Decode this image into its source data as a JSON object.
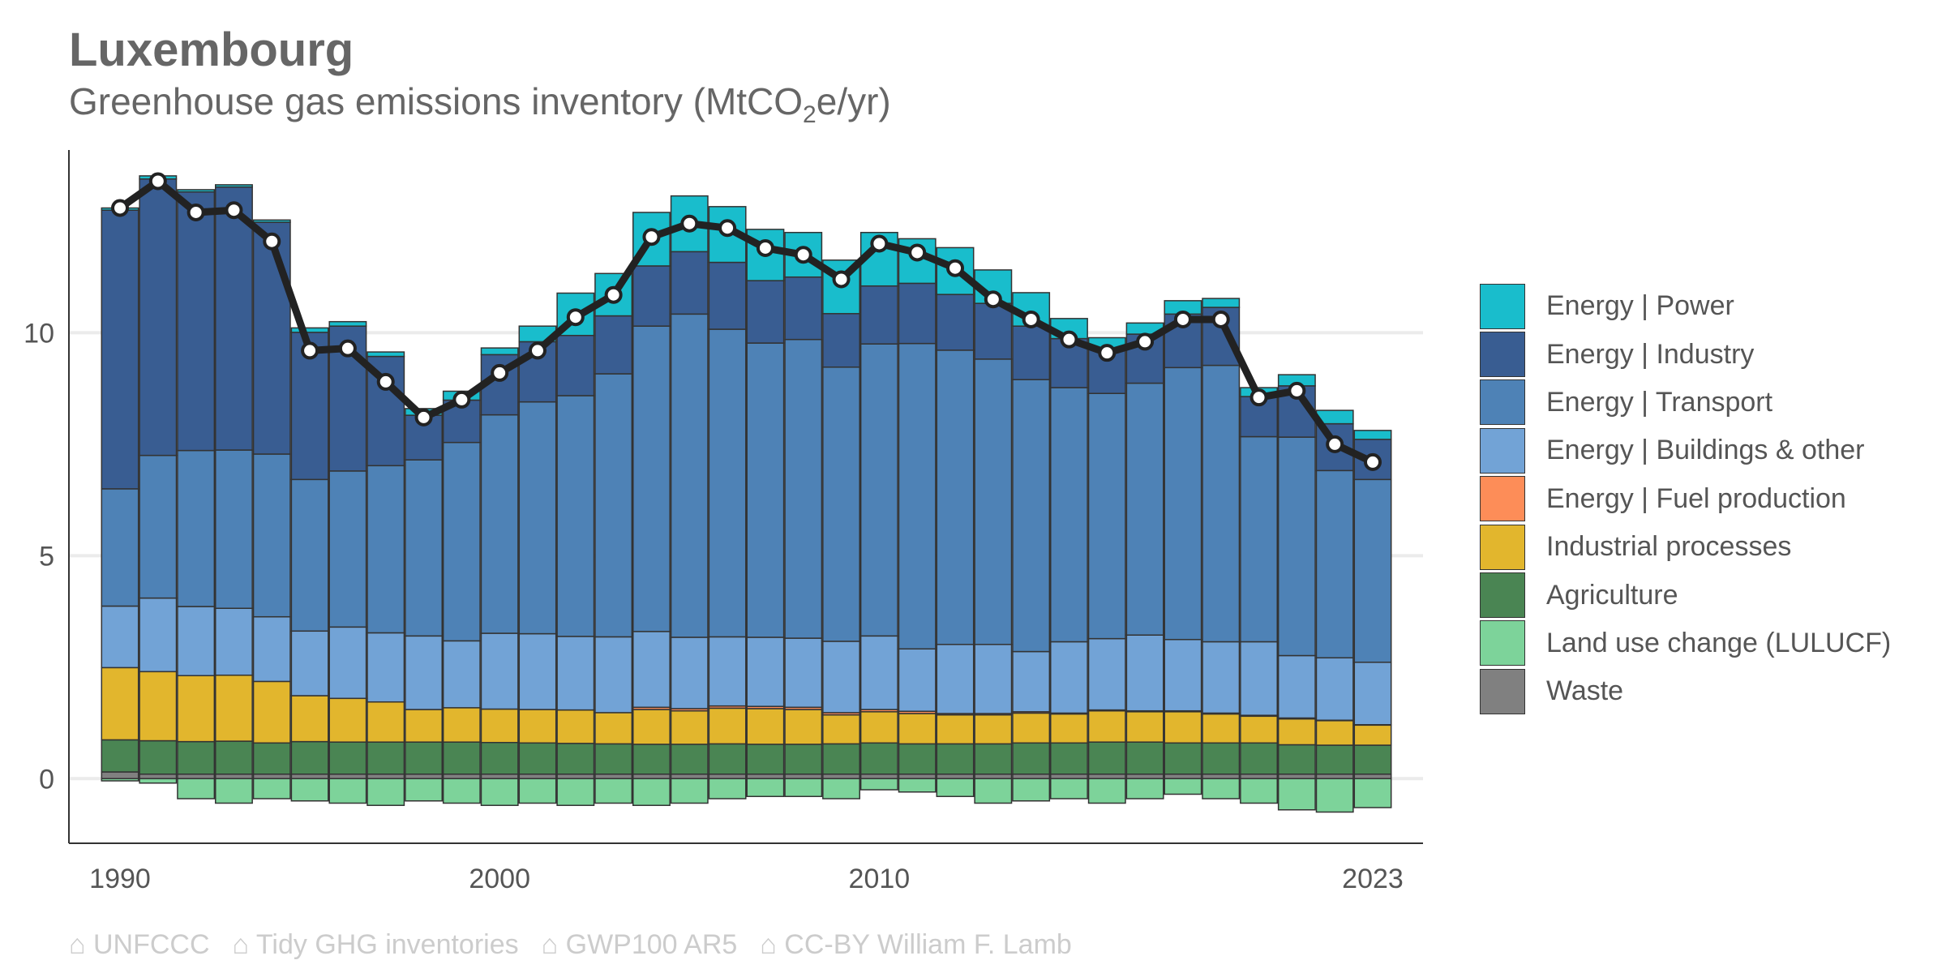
{
  "header": {
    "title": "Luxembourg",
    "subtitle_main": "Greenhouse gas emissions inventory (MtCO",
    "subtitle_sub": "2",
    "subtitle_end": "e/yr)"
  },
  "footer": {
    "sources": [
      "⌂ UNFCCC",
      "⌂ Tidy GHG inventories",
      "⌂ GWP100 AR5",
      "⌂ CC-BY William F. Lamb"
    ]
  },
  "chart_data": {
    "type": "bar",
    "stacked": true,
    "x_tick_labels": [
      "1990",
      "2000",
      "2010",
      "2023"
    ],
    "y_tick_labels": [
      "0",
      "5",
      "10"
    ],
    "ylim": [
      -1.45,
      14.1
    ],
    "grid": "horizontal",
    "legend_position": "right",
    "years": [
      1990,
      1991,
      1992,
      1993,
      1994,
      1995,
      1996,
      1997,
      1998,
      1999,
      2000,
      2001,
      2002,
      2003,
      2004,
      2005,
      2006,
      2007,
      2008,
      2009,
      2010,
      2011,
      2012,
      2013,
      2014,
      2015,
      2016,
      2017,
      2018,
      2019,
      2020,
      2021,
      2022,
      2023
    ],
    "series": [
      {
        "name": "Waste",
        "color": "#808080",
        "values": [
          0.15,
          0.1,
          0.1,
          0.1,
          0.1,
          0.1,
          0.1,
          0.1,
          0.1,
          0.1,
          0.1,
          0.1,
          0.1,
          0.1,
          0.1,
          0.1,
          0.1,
          0.1,
          0.1,
          0.1,
          0.1,
          0.1,
          0.1,
          0.1,
          0.1,
          0.1,
          0.1,
          0.1,
          0.1,
          0.1,
          0.1,
          0.1,
          0.1,
          0.1
        ]
      },
      {
        "name": "Land use change (LULUCF)",
        "color": "#7dd39a",
        "values": [
          -0.05,
          -0.1,
          -0.45,
          -0.55,
          -0.45,
          -0.5,
          -0.55,
          -0.6,
          -0.5,
          -0.55,
          -0.6,
          -0.55,
          -0.6,
          -0.55,
          -0.6,
          -0.55,
          -0.45,
          -0.4,
          -0.4,
          -0.45,
          -0.25,
          -0.3,
          -0.4,
          -0.55,
          -0.5,
          -0.45,
          -0.55,
          -0.45,
          -0.35,
          -0.45,
          -0.55,
          -0.7,
          -0.75,
          -0.65
        ]
      },
      {
        "name": "Agriculture",
        "color": "#4a8553",
        "values": [
          0.72,
          0.75,
          0.73,
          0.74,
          0.7,
          0.73,
          0.72,
          0.72,
          0.72,
          0.72,
          0.71,
          0.7,
          0.69,
          0.68,
          0.67,
          0.67,
          0.68,
          0.67,
          0.67,
          0.68,
          0.7,
          0.68,
          0.68,
          0.68,
          0.7,
          0.7,
          0.72,
          0.72,
          0.7,
          0.7,
          0.7,
          0.66,
          0.65,
          0.65
        ]
      },
      {
        "name": "Industrial processes",
        "color": "#e2b62d",
        "values": [
          1.62,
          1.55,
          1.48,
          1.48,
          1.38,
          1.03,
          0.98,
          0.9,
          0.73,
          0.77,
          0.75,
          0.75,
          0.75,
          0.7,
          0.78,
          0.75,
          0.8,
          0.8,
          0.78,
          0.65,
          0.7,
          0.68,
          0.65,
          0.65,
          0.67,
          0.65,
          0.7,
          0.68,
          0.7,
          0.65,
          0.6,
          0.58,
          0.55,
          0.45
        ]
      },
      {
        "name": "Energy | Fuel production",
        "color": "#fd8d58",
        "values": [
          0,
          0,
          0,
          0,
          0,
          0,
          0,
          0,
          0,
          0,
          0,
          0,
          0,
          0,
          0.05,
          0.05,
          0.05,
          0.05,
          0.05,
          0.05,
          0.05,
          0.05,
          0.03,
          0.03,
          0.03,
          0.02,
          0.02,
          0.02,
          0.02,
          0.02,
          0.02,
          0.02,
          0.01,
          0.01
        ]
      },
      {
        "name": "Energy | Buildings & other",
        "color": "#72a3d6",
        "values": [
          1.38,
          1.65,
          1.55,
          1.5,
          1.45,
          1.45,
          1.6,
          1.55,
          1.65,
          1.5,
          1.7,
          1.7,
          1.65,
          1.7,
          1.7,
          1.6,
          1.55,
          1.55,
          1.55,
          1.6,
          1.65,
          1.4,
          1.55,
          1.55,
          1.35,
          1.6,
          1.6,
          1.7,
          1.6,
          1.6,
          1.65,
          1.4,
          1.4,
          1.4
        ]
      },
      {
        "name": "Energy | Transport",
        "color": "#4e82b6",
        "values": [
          2.63,
          3.2,
          3.5,
          3.55,
          3.65,
          3.4,
          3.5,
          3.75,
          3.95,
          4.45,
          4.9,
          5.2,
          5.4,
          5.9,
          6.85,
          7.25,
          6.9,
          6.6,
          6.7,
          6.15,
          6.55,
          6.85,
          6.6,
          6.4,
          6.1,
          5.7,
          5.5,
          5.65,
          6.1,
          6.2,
          4.6,
          4.9,
          4.2,
          4.1
        ]
      },
      {
        "name": "Energy | Industry",
        "color": "#395d92",
        "values": [
          6.25,
          6.2,
          5.8,
          5.9,
          5.2,
          3.3,
          3.25,
          2.45,
          1.0,
          0.95,
          1.35,
          1.35,
          1.35,
          1.3,
          1.35,
          1.4,
          1.5,
          1.4,
          1.4,
          1.2,
          1.3,
          1.35,
          1.25,
          1.25,
          1.2,
          1.1,
          1.0,
          1.1,
          1.2,
          1.3,
          0.9,
          1.15,
          1.05,
          0.9
        ]
      },
      {
        "name": "Energy | Power",
        "color": "#19bdcc",
        "values": [
          0.05,
          0.07,
          0.05,
          0.05,
          0.05,
          0.1,
          0.1,
          0.1,
          0.15,
          0.2,
          0.15,
          0.35,
          0.95,
          0.95,
          1.2,
          1.25,
          1.25,
          1.15,
          1.0,
          1.2,
          1.2,
          1.0,
          1.05,
          0.75,
          0.75,
          0.45,
          0.25,
          0.25,
          0.3,
          0.2,
          0.2,
          0.25,
          0.3,
          0.2
        ]
      }
    ],
    "total_line": {
      "name": "Total",
      "color": "#222222",
      "values": [
        12.8,
        13.4,
        12.7,
        12.75,
        12.05,
        9.6,
        9.65,
        8.9,
        8.1,
        8.5,
        9.1,
        9.6,
        10.35,
        10.85,
        12.15,
        12.45,
        12.35,
        11.9,
        11.75,
        11.2,
        12.0,
        11.8,
        11.45,
        10.75,
        10.3,
        9.85,
        9.55,
        9.8,
        10.3,
        10.3,
        8.55,
        8.7,
        7.5,
        7.1
      ]
    },
    "legend_order": [
      "Energy | Power",
      "Energy | Industry",
      "Energy | Transport",
      "Energy | Buildings & other",
      "Energy | Fuel production",
      "Industrial processes",
      "Agriculture",
      "Land use change (LULUCF)",
      "Waste"
    ]
  }
}
